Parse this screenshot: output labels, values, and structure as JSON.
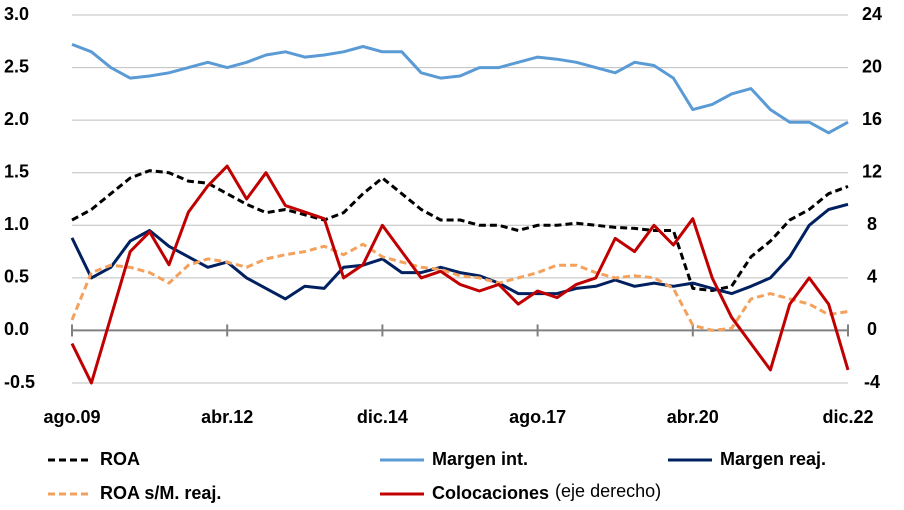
{
  "chart_data": {
    "type": "line",
    "categories": [
      "ago.09",
      null,
      null,
      null,
      null,
      null,
      null,
      null,
      "abr.12",
      null,
      null,
      null,
      null,
      null,
      null,
      null,
      "dic.14",
      null,
      null,
      null,
      null,
      null,
      null,
      null,
      "ago.17",
      null,
      null,
      null,
      null,
      null,
      null,
      null,
      "abr.20",
      null,
      null,
      null,
      null,
      null,
      null,
      null,
      "dic.22"
    ],
    "ylim": [
      -0.5,
      3.0
    ],
    "yticks": [
      {
        "value": -0.5,
        "label": "-0.5"
      },
      {
        "value": 0,
        "label": "0.0"
      },
      {
        "value": 0.5,
        "label": "0.5"
      },
      {
        "value": 1,
        "label": "1.0"
      },
      {
        "value": 1.5,
        "label": "1.5"
      },
      {
        "value": 2,
        "label": "2.0"
      },
      {
        "value": 2.5,
        "label": "2.5"
      },
      {
        "value": 3,
        "label": "3.0"
      }
    ],
    "y2lim": [
      -4,
      24
    ],
    "y2ticks": [
      -4,
      0,
      4,
      8,
      12,
      16,
      20,
      24
    ],
    "grid": true,
    "legend_note": "(eje derecho)",
    "series": [
      {
        "name": "ROA",
        "color": "#000000",
        "dashed": true,
        "values": [
          1.05,
          1.15,
          1.3,
          1.45,
          1.52,
          1.5,
          1.42,
          1.4,
          1.3,
          1.2,
          1.12,
          1.15,
          1.1,
          1.05,
          1.12,
          1.3,
          1.45,
          1.3,
          1.15,
          1.05,
          1.05,
          1.0,
          1.0,
          0.95,
          1.0,
          1.0,
          1.02,
          1.0,
          0.98,
          0.97,
          0.95,
          0.95,
          0.4,
          0.38,
          0.42,
          0.7,
          0.85,
          1.05,
          1.15,
          1.3,
          1.37
        ]
      },
      {
        "name": "Margen int.",
        "color": "#5b9bd5",
        "dashed": false,
        "values": [
          2.72,
          2.65,
          2.5,
          2.4,
          2.42,
          2.45,
          2.5,
          2.55,
          2.5,
          2.55,
          2.62,
          2.65,
          2.6,
          2.62,
          2.65,
          2.7,
          2.65,
          2.65,
          2.45,
          2.4,
          2.42,
          2.5,
          2.5,
          2.55,
          2.6,
          2.58,
          2.55,
          2.5,
          2.45,
          2.55,
          2.52,
          2.4,
          2.1,
          2.15,
          2.25,
          2.3,
          2.1,
          1.98,
          1.98,
          1.88,
          1.98
        ]
      },
      {
        "name": "Margen reaj.",
        "color": "#002060",
        "dashed": false,
        "values": [
          0.88,
          0.5,
          0.6,
          0.85,
          0.95,
          0.8,
          0.7,
          0.6,
          0.65,
          0.5,
          0.4,
          0.3,
          0.42,
          0.4,
          0.6,
          0.62,
          0.68,
          0.55,
          0.55,
          0.6,
          0.55,
          0.52,
          0.45,
          0.35,
          0.35,
          0.35,
          0.4,
          0.42,
          0.48,
          0.42,
          0.45,
          0.42,
          0.45,
          0.4,
          0.35,
          0.42,
          0.5,
          0.7,
          1.0,
          1.15,
          1.2
        ]
      },
      {
        "name": "ROA s/M. reaj.",
        "color": "#f4a15d",
        "dashed": true,
        "values": [
          0.1,
          0.55,
          0.62,
          0.6,
          0.55,
          0.45,
          0.62,
          0.68,
          0.65,
          0.6,
          0.68,
          0.72,
          0.75,
          0.8,
          0.72,
          0.82,
          0.7,
          0.65,
          0.6,
          0.58,
          0.52,
          0.5,
          0.45,
          0.5,
          0.55,
          0.62,
          0.62,
          0.55,
          0.5,
          0.52,
          0.5,
          0.4,
          0.05,
          0.0,
          0.02,
          0.3,
          0.35,
          0.3,
          0.25,
          0.15,
          0.18
        ]
      },
      {
        "name": "Colocaciones",
        "color": "#c00000",
        "dashed": false,
        "axis": "y2",
        "values": [
          -1,
          -4,
          1,
          6,
          7.5,
          5,
          9,
          11,
          12.5,
          10,
          12,
          9.5,
          9,
          8.5,
          4,
          5,
          8,
          6,
          4,
          4.5,
          3.5,
          3,
          3.5,
          2,
          3,
          2.5,
          3.5,
          4,
          7,
          6,
          8,
          6.5,
          8.5,
          4,
          1,
          -1,
          -3,
          2,
          4,
          2,
          -3
        ]
      }
    ]
  }
}
